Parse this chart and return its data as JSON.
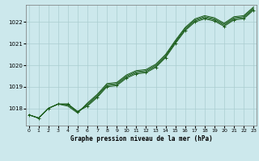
{
  "title": "Graphe pression niveau de la mer (hPa)",
  "bg_color": "#cce8ec",
  "line_color": "#1a5c1a",
  "grid_color": "#aacdd0",
  "x_ticks": [
    0,
    1,
    2,
    3,
    4,
    5,
    6,
    7,
    8,
    9,
    10,
    11,
    12,
    13,
    14,
    15,
    16,
    17,
    18,
    19,
    20,
    21,
    22,
    23
  ],
  "y_ticks": [
    1018,
    1019,
    1020,
    1021,
    1022
  ],
  "ylim": [
    1017.2,
    1022.8
  ],
  "xlim": [
    -0.3,
    23.3
  ],
  "series": [
    [
      1017.7,
      1017.55,
      1018.0,
      1018.2,
      1018.2,
      1017.85,
      1018.1,
      1018.5,
      1019.0,
      1019.05,
      1019.4,
      1019.6,
      1019.65,
      1019.9,
      1020.35,
      1021.0,
      1021.6,
      1022.0,
      1022.15,
      1022.05,
      1021.8,
      1022.1,
      1022.15,
      1022.55
    ],
    [
      1017.7,
      1017.55,
      1018.0,
      1018.2,
      1018.2,
      1017.85,
      1018.15,
      1018.55,
      1019.05,
      1019.1,
      1019.45,
      1019.65,
      1019.7,
      1019.95,
      1020.4,
      1021.05,
      1021.65,
      1022.05,
      1022.2,
      1022.1,
      1021.85,
      1022.15,
      1022.2,
      1022.6
    ],
    [
      1017.7,
      1017.55,
      1018.0,
      1018.2,
      1018.15,
      1017.82,
      1018.2,
      1018.6,
      1019.1,
      1019.15,
      1019.5,
      1019.7,
      1019.75,
      1020.0,
      1020.45,
      1021.1,
      1021.7,
      1022.1,
      1022.25,
      1022.15,
      1021.9,
      1022.2,
      1022.25,
      1022.65
    ],
    [
      1017.7,
      1017.55,
      1018.0,
      1018.2,
      1018.1,
      1017.78,
      1018.25,
      1018.65,
      1019.15,
      1019.2,
      1019.55,
      1019.75,
      1019.8,
      1020.05,
      1020.5,
      1021.15,
      1021.75,
      1022.15,
      1022.3,
      1022.2,
      1021.95,
      1022.25,
      1022.3,
      1022.7
    ]
  ],
  "marker": "+",
  "marker_size": 3.5,
  "linewidth": 0.7
}
